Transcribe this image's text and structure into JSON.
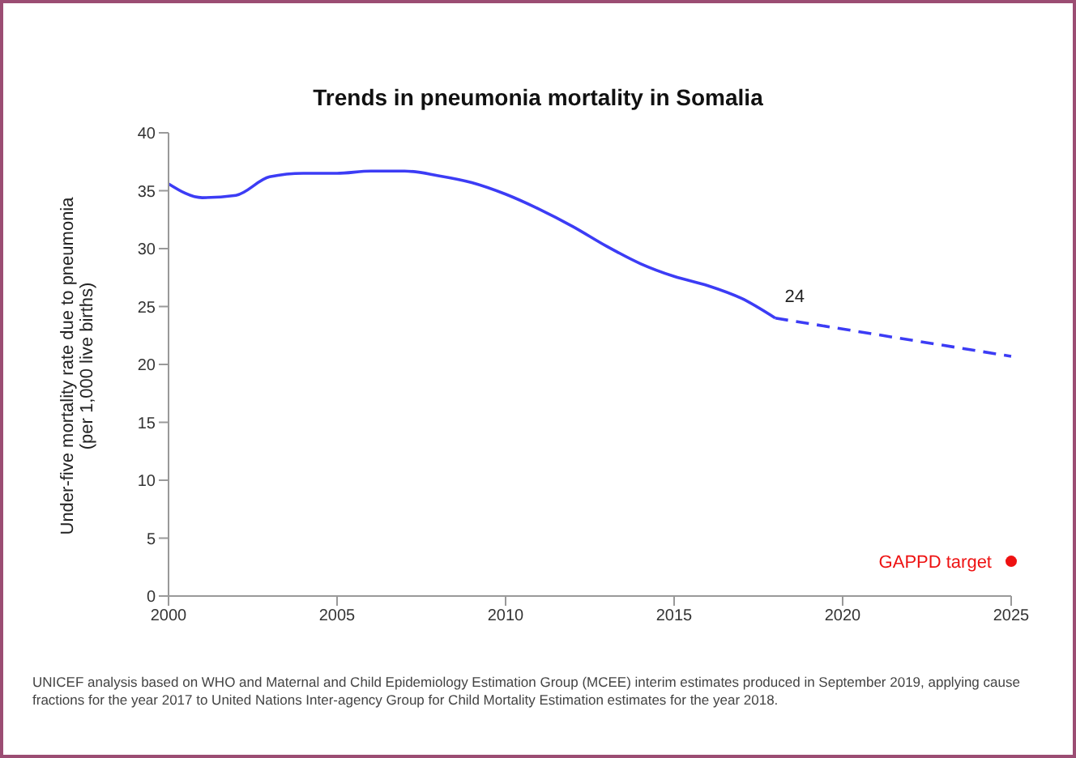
{
  "chart_data": {
    "type": "line",
    "title": "Trends in pneumonia mortality in Somalia",
    "ylabel": "Under-five mortality rate due to pneumonia\n(per 1,000 live births)",
    "xlim": [
      2000,
      2025
    ],
    "xticks": [
      2000,
      2005,
      2010,
      2015,
      2020,
      2025
    ],
    "ylim": [
      0,
      40
    ],
    "yticks": [
      0,
      5,
      10,
      15,
      20,
      25,
      30,
      35,
      40
    ],
    "grid": false,
    "legend": false,
    "series": [
      {
        "color": "#3c3cf5",
        "line_style": "solid",
        "marker": "none",
        "x": [
          2000,
          2001,
          2002,
          2003,
          2004,
          2005,
          2006,
          2007,
          2008,
          2009,
          2010,
          2011,
          2012,
          2013,
          2014,
          2015,
          2016,
          2017,
          2018
        ],
        "values": [
          35.6,
          34.4,
          34.6,
          36.2,
          36.5,
          36.5,
          36.7,
          36.7,
          36.3,
          35.7,
          34.7,
          33.4,
          31.9,
          30.2,
          28.7,
          27.6,
          26.8,
          25.7,
          24
        ]
      },
      {
        "color": "#3c3cf5",
        "line_style": "dashed",
        "marker": "none",
        "x": [
          2018,
          2025
        ],
        "values": [
          24,
          20.7
        ]
      },
      {
        "type": "scatter",
        "marker": "circle",
        "name": "GAPPD target",
        "color": "#ee1111",
        "x": [
          2025
        ],
        "values": [
          3
        ]
      }
    ],
    "annotations": [
      {
        "text": "24",
        "x": 2018,
        "y": 24
      },
      "UNICEF analysis based on WHO and Maternal and Child Epidemiology Estimation Group (MCEE) interim estimates produced in September 2019, applying cause fractions for the year 2017 to United Nations Inter-agency Group for Child Mortality Estimation estimates for the year 2018."
    ]
  }
}
